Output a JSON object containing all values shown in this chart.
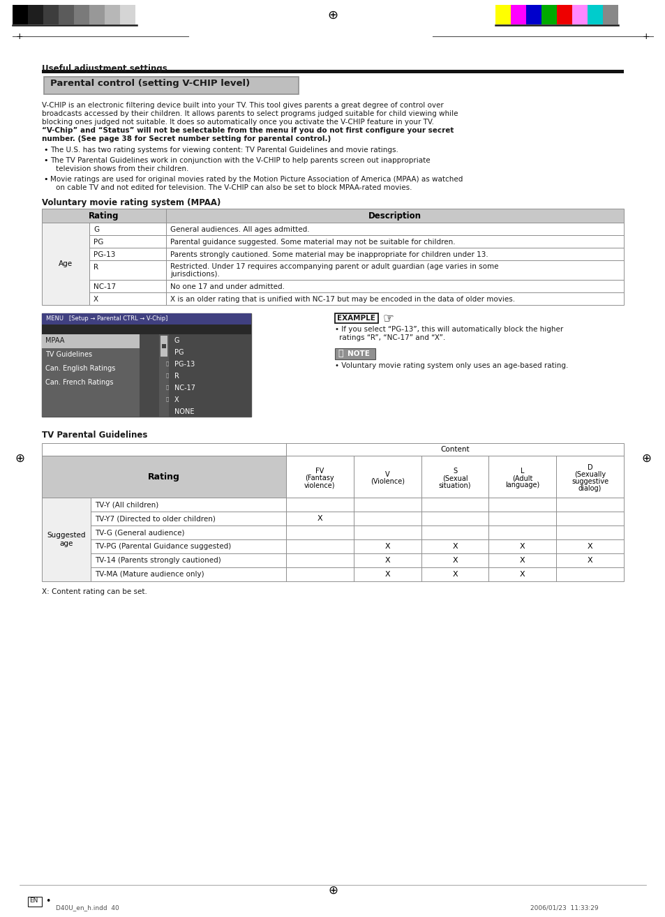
{
  "page_title": "Useful adjustment settings",
  "section_title": "Parental control (setting V-CHIP level)",
  "intro_lines": [
    "V-CHIP is an electronic filtering device built into your TV. This tool gives parents a great degree of control over",
    "broadcasts accessed by their children. It allows parents to select programs judged suitable for child viewing while",
    "blocking ones judged not suitable. It does so automatically once you activate the V-CHIP feature in your TV.",
    "“V-Chip” and “Status” will not be selectable from the menu if you do not first configure your secret",
    "number. (See page 38 for Secret number setting for parental control.)"
  ],
  "intro_bold": [
    3,
    4
  ],
  "bullets": [
    [
      "The U.S. has two rating systems for viewing content: TV Parental Guidelines and movie ratings."
    ],
    [
      "The TV Parental Guidelines work in conjunction with the V-CHIP to help parents screen out inappropriate",
      "television shows from their children."
    ],
    [
      "Movie ratings are used for original movies rated by the Motion Picture Association of America (MPAA) as watched",
      "on cable TV and not edited for television. The V-CHIP can also be set to block MPAA-rated movies."
    ]
  ],
  "mpaa_title": "Voluntary movie rating system (MPAA)",
  "mpaa_rows": [
    [
      "G",
      "General audiences. All ages admitted."
    ],
    [
      "PG",
      "Parental guidance suggested. Some material may not be suitable for children."
    ],
    [
      "PG-13",
      "Parents strongly cautioned. Some material may be inappropriate for children under 13."
    ],
    [
      "R",
      "Restricted. Under 17 requires accompanying parent or adult guardian (age varies in some",
      "jurisdictions)."
    ],
    [
      "NC-17",
      "No one 17 and under admitted."
    ],
    [
      "X",
      "X is an older rating that is unified with NC-17 but may be encoded in the data of older movies."
    ]
  ],
  "menu_label": "MENU   [Setup → Parental CTRL → V-Chip]",
  "menu_items": [
    "MPAA",
    "TV Guidelines",
    "Can. English Ratings",
    "Can. French Ratings"
  ],
  "menu_ratings": [
    "G",
    "PG",
    "PG-13",
    "R",
    "NC-17",
    "X",
    "NONE"
  ],
  "menu_locked": [
    false,
    false,
    true,
    true,
    true,
    true,
    false
  ],
  "example_lines": [
    "If you select “PG-13”, this will automatically block the higher",
    "ratings “R”, “NC-17” and “X”."
  ],
  "note_text": "Voluntary movie rating system only uses an age-based rating.",
  "tv_guidelines_title": "TV Parental Guidelines",
  "tv_content_cols": [
    [
      "FV",
      "(Fantasy",
      "violence)"
    ],
    [
      "V",
      "(Violence)"
    ],
    [
      "S",
      "(Sexual",
      "situation)"
    ],
    [
      "L",
      "(Adult",
      "language)"
    ],
    [
      "D",
      "(Sexually",
      "suggestive",
      "dialog)"
    ]
  ],
  "tv_rows": [
    [
      "TV-Y (All children)",
      "",
      "",
      "",
      "",
      ""
    ],
    [
      "TV-Y7 (Directed to older children)",
      "X",
      "",
      "",
      "",
      ""
    ],
    [
      "TV-G (General audience)",
      "",
      "",
      "",
      "",
      ""
    ],
    [
      "TV-PG (Parental Guidance suggested)",
      "",
      "X",
      "X",
      "X",
      "X"
    ],
    [
      "TV-14 (Parents strongly cautioned)",
      "",
      "X",
      "X",
      "X",
      "X"
    ],
    [
      "TV-MA (Mature audience only)",
      "",
      "X",
      "X",
      "X",
      ""
    ]
  ],
  "footer_note": "X: Content rating can be set.",
  "page_footer_left": "D40U_en_h.indd  40",
  "page_footer_right": "2006/01/23  11:33:29",
  "gray_bars": [
    "#000000",
    "#1e1e1e",
    "#3d3d3d",
    "#5b5b5b",
    "#7a7a7a",
    "#989898",
    "#b7b7b7",
    "#d5d5d5"
  ],
  "color_bars": [
    "#ffff00",
    "#ff00ff",
    "#0000cc",
    "#00aa00",
    "#ee0000",
    "#ff88ff",
    "#00cccc",
    "#888888"
  ],
  "bg_color": "#ffffff",
  "table_header_bg": "#c8c8c8",
  "table_border": "#909090",
  "section_bg": "#bebebe",
  "menu_title_bg": "#404080",
  "menu_left_bg1": "#c0c0c0",
  "menu_left_bg2": "#606060",
  "menu_right_bg": "#484848",
  "menu_scroll_bg": "#606060",
  "menu_scroll_thumb": "#c0c0c0"
}
